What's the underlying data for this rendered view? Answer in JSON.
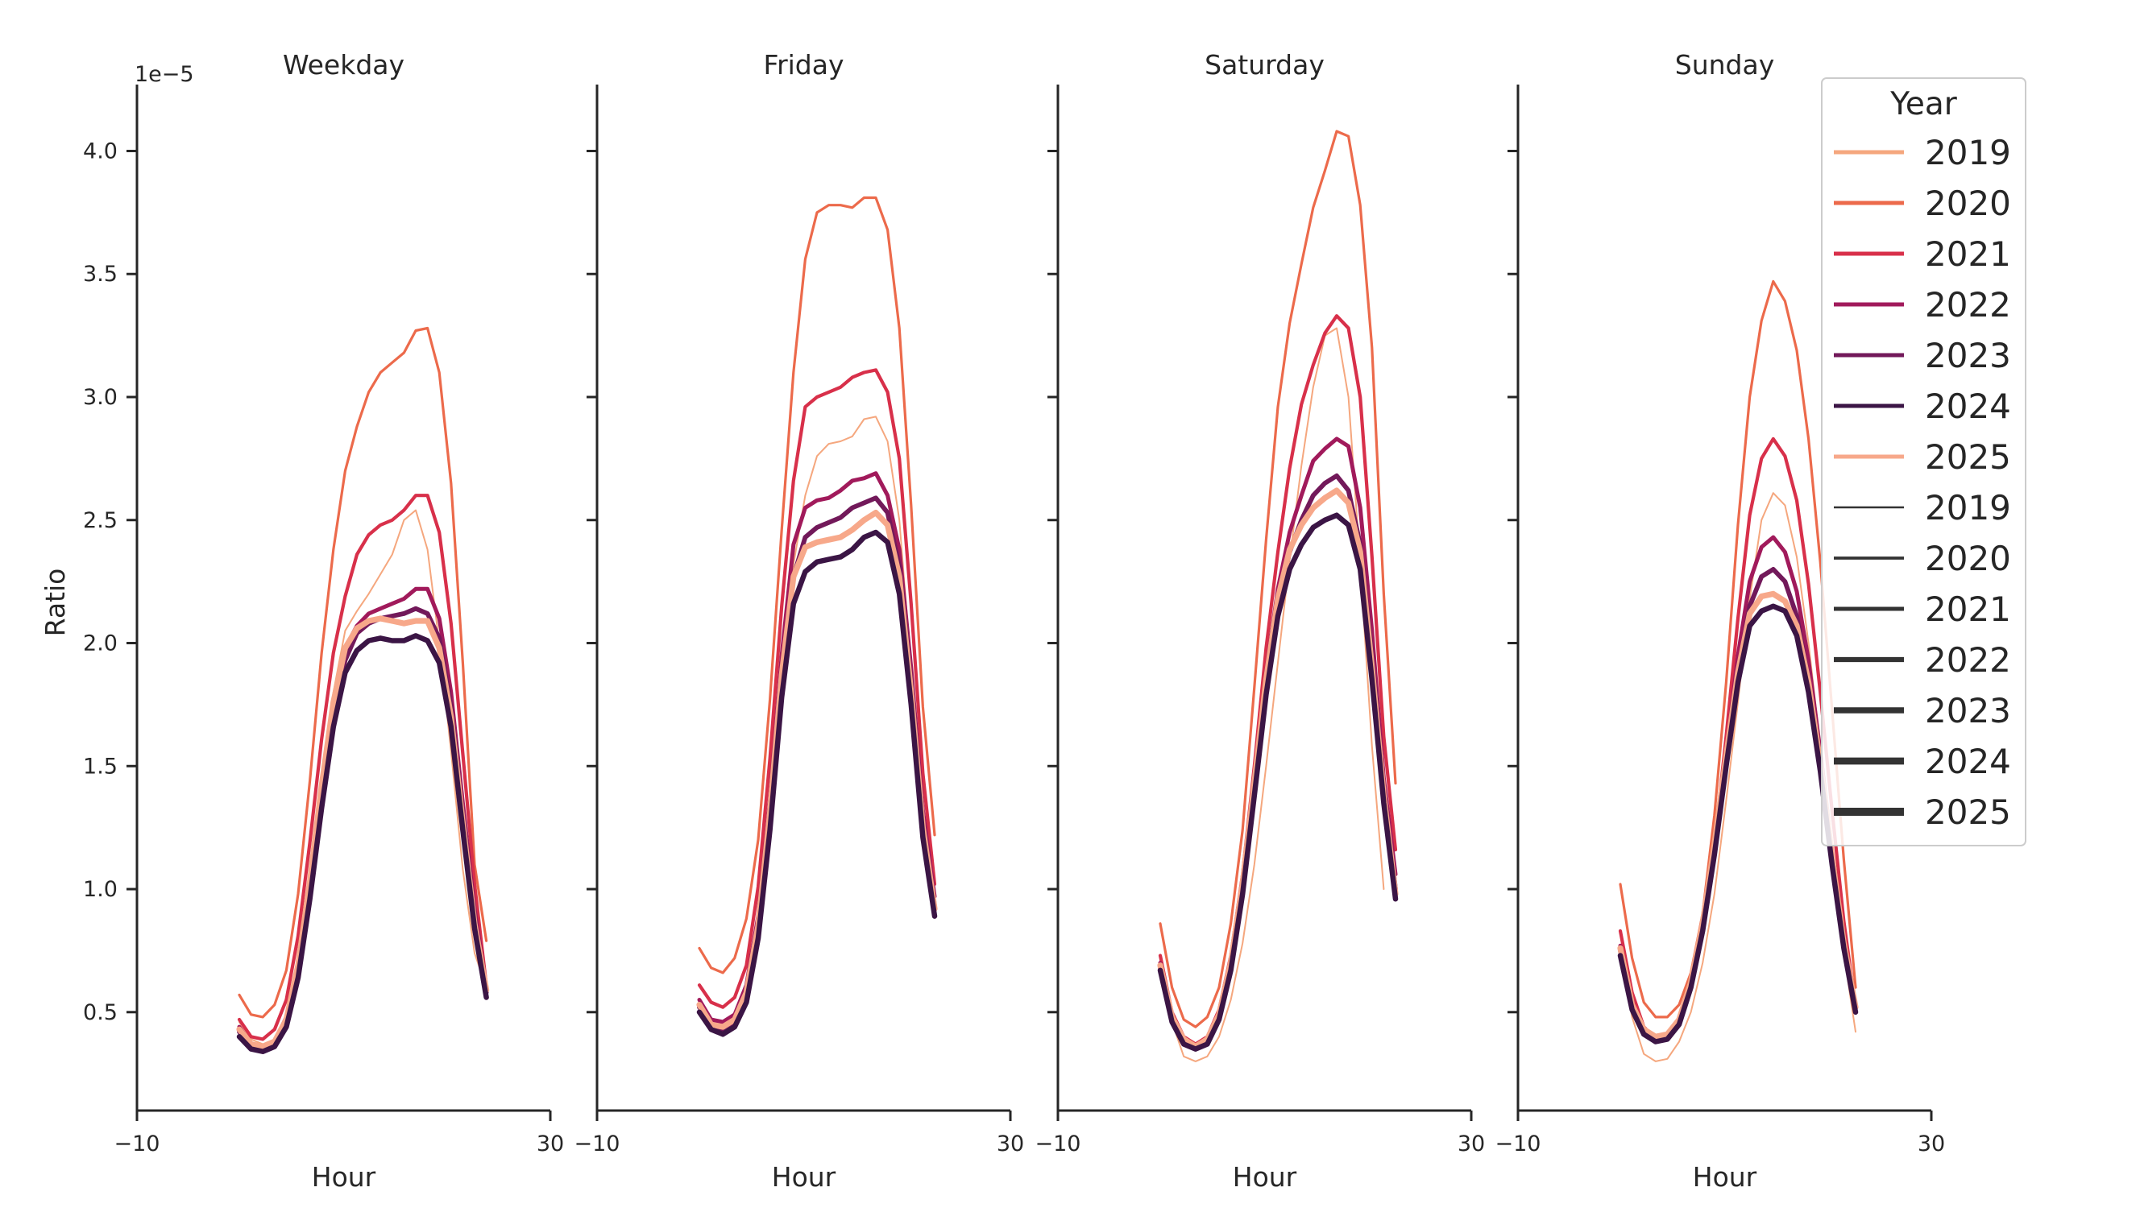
{
  "chart_data": {
    "type": "line",
    "ylabel": "Ratio",
    "xlabel": "Hour",
    "y_scale_label": "1e−5",
    "xlim": [
      -10,
      30
    ],
    "ylim": [
      0.1,
      4.27
    ],
    "x_ticks": [
      -10,
      30
    ],
    "x_tick_labels": [
      "−10",
      "30"
    ],
    "y_ticks": [
      0.5,
      1.0,
      1.5,
      2.0,
      2.5,
      3.0,
      3.5,
      4.0
    ],
    "y_tick_labels": [
      "0.5",
      "1.0",
      "1.5",
      "2.0",
      "2.5",
      "3.0",
      "3.5",
      "4.0"
    ],
    "x": [
      0,
      1,
      2,
      3,
      4,
      5,
      6,
      7,
      8,
      9,
      10,
      11,
      12,
      13,
      14,
      15,
      16,
      17,
      18,
      19,
      20,
      21,
      22,
      23
    ],
    "panels": [
      {
        "title": "Weekday",
        "series": [
          {
            "name": "2019",
            "values": [
              0.46,
              0.39,
              0.37,
              0.39,
              0.48,
              0.68,
              1.02,
              1.42,
              1.8,
              2.05,
              2.13,
              2.2,
              2.28,
              2.36,
              2.5,
              2.54,
              2.38,
              2.0,
              1.56,
              1.08,
              0.74,
              0.6
            ]
          },
          {
            "name": "2020",
            "values": [
              0.57,
              0.49,
              0.48,
              0.53,
              0.67,
              0.98,
              1.44,
              1.96,
              2.38,
              2.7,
              2.88,
              3.02,
              3.1,
              3.14,
              3.18,
              3.27,
              3.28,
              3.1,
              2.65,
              1.92,
              1.1,
              0.79
            ]
          },
          {
            "name": "2021",
            "values": [
              0.47,
              0.4,
              0.39,
              0.43,
              0.55,
              0.81,
              1.19,
              1.61,
              1.96,
              2.19,
              2.36,
              2.44,
              2.48,
              2.5,
              2.54,
              2.6,
              2.6,
              2.45,
              2.08,
              1.55,
              1.02,
              0.61
            ]
          },
          {
            "name": "2022",
            "values": [
              0.44,
              0.37,
              0.36,
              0.38,
              0.48,
              0.7,
              1.04,
              1.43,
              1.76,
              1.98,
              2.07,
              2.12,
              2.14,
              2.16,
              2.18,
              2.22,
              2.22,
              2.1,
              1.8,
              1.35,
              0.92,
              0.6
            ]
          },
          {
            "name": "2023",
            "values": [
              0.42,
              0.36,
              0.35,
              0.37,
              0.46,
              0.67,
              1.0,
              1.38,
              1.71,
              1.93,
              2.04,
              2.08,
              2.1,
              2.11,
              2.12,
              2.14,
              2.12,
              2.02,
              1.74,
              1.3,
              0.88,
              0.58
            ]
          },
          {
            "name": "2024",
            "values": [
              0.4,
              0.35,
              0.34,
              0.36,
              0.44,
              0.64,
              0.96,
              1.33,
              1.66,
              1.88,
              1.97,
              2.01,
              2.02,
              2.01,
              2.01,
              2.03,
              2.01,
              1.92,
              1.66,
              1.24,
              0.84,
              0.56
            ]
          },
          {
            "name": "2025",
            "values": [
              0.43,
              0.37,
              0.36,
              0.38,
              0.47,
              0.69,
              1.03,
              1.42,
              1.76,
              1.98,
              2.06,
              2.09,
              2.1,
              2.09,
              2.08,
              2.09,
              2.09,
              1.98,
              1.7,
              1.27,
              0.86,
              0.59
            ]
          }
        ]
      },
      {
        "title": "Friday",
        "series": [
          {
            "name": "2019",
            "values": [
              0.54,
              0.46,
              0.44,
              0.47,
              0.58,
              0.85,
              1.3,
              1.84,
              2.32,
              2.6,
              2.76,
              2.81,
              2.82,
              2.84,
              2.91,
              2.92,
              2.82,
              2.5,
              1.9,
              1.25,
              0.95
            ]
          },
          {
            "name": "2020",
            "values": [
              0.76,
              0.68,
              0.66,
              0.72,
              0.88,
              1.2,
              1.77,
              2.46,
              3.1,
              3.56,
              3.75,
              3.78,
              3.78,
              3.77,
              3.81,
              3.81,
              3.68,
              3.28,
              2.56,
              1.74,
              1.22
            ]
          },
          {
            "name": "2021",
            "values": [
              0.61,
              0.54,
              0.52,
              0.56,
              0.69,
              1.01,
              1.53,
              2.15,
              2.66,
              2.96,
              3.0,
              3.02,
              3.04,
              3.08,
              3.1,
              3.11,
              3.02,
              2.75,
              2.16,
              1.47,
              1.02
            ]
          },
          {
            "name": "2022",
            "values": [
              0.55,
              0.47,
              0.46,
              0.49,
              0.61,
              0.89,
              1.36,
              1.95,
              2.4,
              2.55,
              2.58,
              2.59,
              2.62,
              2.66,
              2.67,
              2.69,
              2.6,
              2.38,
              1.9,
              1.32,
              0.97
            ]
          },
          {
            "name": "2023",
            "values": [
              0.52,
              0.45,
              0.43,
              0.46,
              0.57,
              0.84,
              1.3,
              1.86,
              2.27,
              2.43,
              2.47,
              2.49,
              2.51,
              2.55,
              2.57,
              2.59,
              2.53,
              2.31,
              1.84,
              1.27,
              0.93
            ]
          },
          {
            "name": "2024",
            "values": [
              0.5,
              0.43,
              0.41,
              0.44,
              0.54,
              0.8,
              1.24,
              1.78,
              2.16,
              2.29,
              2.33,
              2.34,
              2.35,
              2.38,
              2.43,
              2.45,
              2.41,
              2.2,
              1.75,
              1.21,
              0.89
            ]
          },
          {
            "name": "2025",
            "values": [
              0.53,
              0.45,
              0.44,
              0.47,
              0.58,
              0.85,
              1.31,
              1.87,
              2.27,
              2.39,
              2.41,
              2.42,
              2.43,
              2.46,
              2.5,
              2.53,
              2.48,
              2.27,
              1.8,
              1.25,
              0.92
            ]
          }
        ]
      },
      {
        "title": "Saturday",
        "series": [
          {
            "name": "2019",
            "values": [
              0.66,
              0.46,
              0.32,
              0.3,
              0.32,
              0.4,
              0.55,
              0.78,
              1.1,
              1.5,
              1.92,
              2.34,
              2.72,
              3.04,
              3.25,
              3.28,
              3.0,
              2.32,
              1.58,
              1.0
            ]
          },
          {
            "name": "2020",
            "values": [
              0.86,
              0.6,
              0.47,
              0.44,
              0.48,
              0.6,
              0.86,
              1.24,
              1.82,
              2.42,
              2.96,
              3.3,
              3.54,
              3.77,
              3.92,
              4.08,
              4.06,
              3.78,
              3.2,
              2.2,
              1.43
            ]
          },
          {
            "name": "2021",
            "values": [
              0.73,
              0.5,
              0.4,
              0.37,
              0.4,
              0.51,
              0.73,
              1.06,
              1.5,
              1.98,
              2.37,
              2.71,
              2.97,
              3.13,
              3.26,
              3.33,
              3.28,
              3.0,
              2.35,
              1.62,
              1.16
            ]
          },
          {
            "name": "2022",
            "values": [
              0.7,
              0.48,
              0.38,
              0.36,
              0.39,
              0.49,
              0.7,
              1.02,
              1.44,
              1.88,
              2.22,
              2.45,
              2.6,
              2.74,
              2.79,
              2.83,
              2.8,
              2.55,
              2.05,
              1.45,
              1.06
            ]
          },
          {
            "name": "2023",
            "values": [
              0.68,
              0.47,
              0.37,
              0.35,
              0.38,
              0.48,
              0.68,
              1.0,
              1.41,
              1.83,
              2.17,
              2.37,
              2.5,
              2.6,
              2.65,
              2.68,
              2.62,
              2.4,
              1.95,
              1.4,
              1.0
            ]
          },
          {
            "name": "2024",
            "values": [
              0.67,
              0.46,
              0.37,
              0.35,
              0.37,
              0.47,
              0.67,
              0.98,
              1.38,
              1.79,
              2.11,
              2.3,
              2.4,
              2.47,
              2.5,
              2.52,
              2.48,
              2.3,
              1.85,
              1.35,
              0.96
            ]
          },
          {
            "name": "2025",
            "values": [
              0.69,
              0.48,
              0.39,
              0.36,
              0.39,
              0.49,
              0.7,
              1.02,
              1.43,
              1.85,
              2.18,
              2.38,
              2.48,
              2.55,
              2.59,
              2.62,
              2.57,
              2.37,
              1.9,
              1.38,
              0.98
            ]
          }
        ]
      },
      {
        "title": "Sunday",
        "series": [
          {
            "name": "2019",
            "values": [
              0.74,
              0.48,
              0.33,
              0.3,
              0.31,
              0.38,
              0.5,
              0.7,
              0.98,
              1.36,
              1.76,
              2.18,
              2.5,
              2.61,
              2.56,
              2.35,
              2.0,
              1.58,
              1.14,
              0.74,
              0.42
            ]
          },
          {
            "name": "2020",
            "values": [
              1.02,
              0.72,
              0.54,
              0.48,
              0.48,
              0.53,
              0.66,
              0.9,
              1.3,
              1.84,
              2.48,
              3.0,
              3.31,
              3.47,
              3.39,
              3.19,
              2.83,
              2.33,
              1.73,
              1.12,
              0.6
            ]
          },
          {
            "name": "2021",
            "values": [
              0.83,
              0.58,
              0.44,
              0.39,
              0.4,
              0.46,
              0.6,
              0.83,
              1.18,
              1.62,
              2.1,
              2.52,
              2.75,
              2.83,
              2.76,
              2.58,
              2.24,
              1.8,
              1.32,
              0.87,
              0.52
            ]
          },
          {
            "name": "2022",
            "values": [
              0.77,
              0.53,
              0.41,
              0.38,
              0.39,
              0.45,
              0.6,
              0.83,
              1.16,
              1.55,
              1.95,
              2.25,
              2.39,
              2.43,
              2.37,
              2.21,
              1.93,
              1.56,
              1.15,
              0.78,
              0.51
            ]
          },
          {
            "name": "2023",
            "values": [
              0.75,
              0.52,
              0.41,
              0.38,
              0.39,
              0.45,
              0.6,
              0.83,
              1.15,
              1.52,
              1.88,
              2.15,
              2.27,
              2.3,
              2.25,
              2.11,
              1.85,
              1.51,
              1.12,
              0.77,
              0.5
            ]
          },
          {
            "name": "2024",
            "values": [
              0.73,
              0.51,
              0.41,
              0.38,
              0.39,
              0.45,
              0.6,
              0.83,
              1.14,
              1.5,
              1.84,
              2.07,
              2.13,
              2.15,
              2.13,
              2.03,
              1.8,
              1.48,
              1.1,
              0.76,
              0.5
            ]
          },
          {
            "name": "2025",
            "values": [
              0.76,
              0.53,
              0.43,
              0.4,
              0.41,
              0.47,
              0.62,
              0.86,
              1.18,
              1.54,
              1.88,
              2.12,
              2.19,
              2.2,
              2.17,
              2.07,
              1.84,
              1.51,
              1.13,
              0.78,
              0.52
            ]
          }
        ]
      }
    ],
    "legend": {
      "title": "Year",
      "placement": "right",
      "color_entries": [
        {
          "label": "2019",
          "color": "#f5a77e"
        },
        {
          "label": "2020",
          "color": "#ec6a4b"
        },
        {
          "label": "2021",
          "color": "#d8304a"
        },
        {
          "label": "2022",
          "color": "#a11a5b"
        },
        {
          "label": "2023",
          "color": "#72195a"
        },
        {
          "label": "2024",
          "color": "#3b1545"
        },
        {
          "label": "2025",
          "color": "#f7a88a"
        }
      ],
      "width_entries": [
        {
          "label": "2019",
          "weight": 1
        },
        {
          "label": "2020",
          "weight": 2
        },
        {
          "label": "2021",
          "weight": 3
        },
        {
          "label": "2022",
          "weight": 4
        },
        {
          "label": "2023",
          "weight": 5
        },
        {
          "label": "2024",
          "weight": 6
        },
        {
          "label": "2025",
          "weight": 7
        }
      ]
    }
  },
  "colors": {
    "2019": "#f5a77e",
    "2020": "#ec6a4b",
    "2021": "#d8304a",
    "2022": "#a11a5b",
    "2023": "#72195a",
    "2024": "#3b1545",
    "2025": "#f7a88a",
    "width_legend": "#333333",
    "axis": "#262626"
  }
}
